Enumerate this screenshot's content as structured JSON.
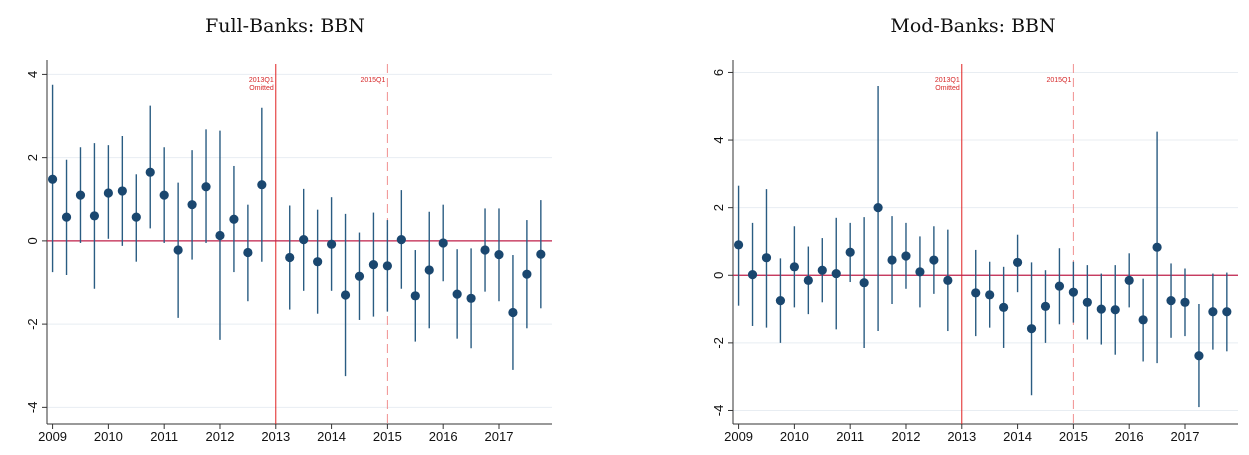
{
  "colors": {
    "marker": "#1a476f",
    "ci": "#2a5c82",
    "zero_line": "#c0204a",
    "ref_line": "#e02020",
    "dash_line": "#f09090",
    "grid": "#e8edf2",
    "annotation": "#d62728"
  },
  "chart_data": [
    {
      "type": "scatter",
      "title": "Full-Banks: BBN",
      "xlabel": "",
      "ylabel": "",
      "xlim": [
        2008.9,
        2017.95
      ],
      "ylim": [
        -4.4,
        4.25
      ],
      "x_ticks": [
        2009,
        2010,
        2011,
        2012,
        2013,
        2014,
        2015,
        2016,
        2017
      ],
      "x_tick_labels": [
        "2009",
        "2010",
        "2011",
        "2012",
        "2013",
        "2014",
        "2015",
        "2016",
        "2017"
      ],
      "y_ticks": [
        -4,
        -2,
        0,
        2,
        4
      ],
      "y_tick_labels": [
        "-4",
        "-2",
        "0",
        "2",
        "4"
      ],
      "grid": true,
      "zero_line": 0,
      "reference_lines": [
        {
          "x": 2013.0,
          "style": "solid",
          "label_lines": [
            "2013Q1",
            "Omitted"
          ]
        },
        {
          "x": 2015.0,
          "style": "dashed",
          "label_lines": [
            "2015Q1"
          ]
        }
      ],
      "points": [
        {
          "x": 2009.0,
          "y": 1.48,
          "lo": -0.75,
          "hi": 3.75
        },
        {
          "x": 2009.25,
          "y": 0.57,
          "lo": -0.82,
          "hi": 1.95
        },
        {
          "x": 2009.5,
          "y": 1.1,
          "lo": -0.05,
          "hi": 2.25
        },
        {
          "x": 2009.75,
          "y": 0.6,
          "lo": -1.15,
          "hi": 2.35
        },
        {
          "x": 2010.0,
          "y": 1.15,
          "lo": 0.05,
          "hi": 2.3
        },
        {
          "x": 2010.25,
          "y": 1.2,
          "lo": -0.12,
          "hi": 2.52
        },
        {
          "x": 2010.5,
          "y": 0.57,
          "lo": -0.5,
          "hi": 1.6
        },
        {
          "x": 2010.75,
          "y": 1.65,
          "lo": 0.3,
          "hi": 3.25
        },
        {
          "x": 2011.0,
          "y": 1.1,
          "lo": -0.05,
          "hi": 2.25
        },
        {
          "x": 2011.25,
          "y": -0.22,
          "lo": -1.85,
          "hi": 1.4
        },
        {
          "x": 2011.5,
          "y": 0.87,
          "lo": -0.45,
          "hi": 2.18
        },
        {
          "x": 2011.75,
          "y": 1.3,
          "lo": -0.05,
          "hi": 2.68
        },
        {
          "x": 2012.0,
          "y": 0.13,
          "lo": -2.38,
          "hi": 2.65
        },
        {
          "x": 2012.25,
          "y": 0.52,
          "lo": -0.75,
          "hi": 1.8
        },
        {
          "x": 2012.5,
          "y": -0.28,
          "lo": -1.45,
          "hi": 0.87
        },
        {
          "x": 2012.75,
          "y": 1.35,
          "lo": -0.5,
          "hi": 3.2
        },
        {
          "x": 2013.25,
          "y": -0.4,
          "lo": -1.65,
          "hi": 0.85
        },
        {
          "x": 2013.5,
          "y": 0.03,
          "lo": -1.2,
          "hi": 1.25
        },
        {
          "x": 2013.75,
          "y": -0.5,
          "lo": -1.75,
          "hi": 0.75
        },
        {
          "x": 2014.0,
          "y": -0.08,
          "lo": -1.2,
          "hi": 1.05
        },
        {
          "x": 2014.25,
          "y": -1.3,
          "lo": -3.25,
          "hi": 0.65
        },
        {
          "x": 2014.5,
          "y": -0.85,
          "lo": -1.9,
          "hi": 0.2
        },
        {
          "x": 2014.75,
          "y": -0.57,
          "lo": -1.82,
          "hi": 0.68
        },
        {
          "x": 2015.0,
          "y": -0.6,
          "lo": -1.7,
          "hi": 0.5
        },
        {
          "x": 2015.25,
          "y": 0.03,
          "lo": -1.15,
          "hi": 1.22
        },
        {
          "x": 2015.5,
          "y": -1.32,
          "lo": -2.42,
          "hi": -0.22
        },
        {
          "x": 2015.75,
          "y": -0.7,
          "lo": -2.1,
          "hi": 0.7
        },
        {
          "x": 2016.0,
          "y": -0.05,
          "lo": -0.97,
          "hi": 0.87
        },
        {
          "x": 2016.25,
          "y": -1.28,
          "lo": -2.35,
          "hi": -0.2
        },
        {
          "x": 2016.5,
          "y": -1.38,
          "lo": -2.58,
          "hi": -0.18
        },
        {
          "x": 2016.75,
          "y": -0.22,
          "lo": -1.22,
          "hi": 0.78
        },
        {
          "x": 2017.0,
          "y": -0.33,
          "lo": -1.45,
          "hi": 0.78
        },
        {
          "x": 2017.25,
          "y": -1.72,
          "lo": -3.1,
          "hi": -0.34
        },
        {
          "x": 2017.5,
          "y": -0.8,
          "lo": -2.1,
          "hi": 0.5
        },
        {
          "x": 2017.75,
          "y": -0.32,
          "lo": -1.62,
          "hi": 0.98
        }
      ]
    },
    {
      "type": "scatter",
      "title": "Mod-Banks: BBN",
      "xlabel": "",
      "ylabel": "",
      "xlim": [
        2008.9,
        2017.95
      ],
      "ylim": [
        -4.4,
        6.25
      ],
      "x_ticks": [
        2009,
        2010,
        2011,
        2012,
        2013,
        2014,
        2015,
        2016,
        2017
      ],
      "x_tick_labels": [
        "2009",
        "2010",
        "2011",
        "2012",
        "2013",
        "2014",
        "2015",
        "2016",
        "2017"
      ],
      "y_ticks": [
        -4,
        -2,
        0,
        2,
        4,
        6
      ],
      "y_tick_labels": [
        "-4",
        "-2",
        "0",
        "2",
        "4",
        "6"
      ],
      "grid": true,
      "zero_line": 0,
      "reference_lines": [
        {
          "x": 2013.0,
          "style": "solid",
          "label_lines": [
            "2013Q1",
            "Omitted"
          ]
        },
        {
          "x": 2015.0,
          "style": "dashed",
          "label_lines": [
            "2015Q1"
          ]
        }
      ],
      "points": [
        {
          "x": 2009.0,
          "y": 0.9,
          "lo": -0.9,
          "hi": 2.65
        },
        {
          "x": 2009.25,
          "y": 0.02,
          "lo": -1.5,
          "hi": 1.55
        },
        {
          "x": 2009.5,
          "y": 0.52,
          "lo": -1.55,
          "hi": 2.55
        },
        {
          "x": 2009.75,
          "y": -0.75,
          "lo": -2.0,
          "hi": 0.5
        },
        {
          "x": 2010.0,
          "y": 0.25,
          "lo": -0.95,
          "hi": 1.45
        },
        {
          "x": 2010.25,
          "y": -0.15,
          "lo": -1.15,
          "hi": 0.85
        },
        {
          "x": 2010.5,
          "y": 0.15,
          "lo": -0.8,
          "hi": 1.1
        },
        {
          "x": 2010.75,
          "y": 0.05,
          "lo": -1.6,
          "hi": 1.7
        },
        {
          "x": 2011.0,
          "y": 0.68,
          "lo": -0.2,
          "hi": 1.55
        },
        {
          "x": 2011.25,
          "y": -0.22,
          "lo": -2.15,
          "hi": 1.72
        },
        {
          "x": 2011.5,
          "y": 2.0,
          "lo": -1.65,
          "hi": 5.6
        },
        {
          "x": 2011.75,
          "y": 0.45,
          "lo": -0.85,
          "hi": 1.75
        },
        {
          "x": 2012.0,
          "y": 0.57,
          "lo": -0.4,
          "hi": 1.55
        },
        {
          "x": 2012.25,
          "y": 0.1,
          "lo": -0.95,
          "hi": 1.15
        },
        {
          "x": 2012.5,
          "y": 0.45,
          "lo": -0.55,
          "hi": 1.45
        },
        {
          "x": 2012.75,
          "y": -0.15,
          "lo": -1.65,
          "hi": 1.35
        },
        {
          "x": 2013.25,
          "y": -0.52,
          "lo": -1.8,
          "hi": 0.75
        },
        {
          "x": 2013.5,
          "y": -0.58,
          "lo": -1.55,
          "hi": 0.4
        },
        {
          "x": 2013.75,
          "y": -0.95,
          "lo": -2.15,
          "hi": 0.25
        },
        {
          "x": 2014.0,
          "y": 0.38,
          "lo": -0.5,
          "hi": 1.2
        },
        {
          "x": 2014.25,
          "y": -1.58,
          "lo": -3.55,
          "hi": 0.38
        },
        {
          "x": 2014.5,
          "y": -0.92,
          "lo": -2.0,
          "hi": 0.15
        },
        {
          "x": 2014.75,
          "y": -0.32,
          "lo": -1.45,
          "hi": 0.8
        },
        {
          "x": 2015.0,
          "y": -0.5,
          "lo": -1.4,
          "hi": 0.4
        },
        {
          "x": 2015.25,
          "y": -0.8,
          "lo": -1.9,
          "hi": 0.3
        },
        {
          "x": 2015.5,
          "y": -1.0,
          "lo": -2.05,
          "hi": 0.05
        },
        {
          "x": 2015.75,
          "y": -1.02,
          "lo": -2.35,
          "hi": 0.3
        },
        {
          "x": 2016.0,
          "y": -0.15,
          "lo": -0.95,
          "hi": 0.65
        },
        {
          "x": 2016.25,
          "y": -1.32,
          "lo": -2.55,
          "hi": -0.1
        },
        {
          "x": 2016.5,
          "y": 0.83,
          "lo": -2.6,
          "hi": 4.25
        },
        {
          "x": 2016.75,
          "y": -0.75,
          "lo": -1.85,
          "hi": 0.35
        },
        {
          "x": 2017.0,
          "y": -0.8,
          "lo": -1.8,
          "hi": 0.2
        },
        {
          "x": 2017.25,
          "y": -2.38,
          "lo": -3.9,
          "hi": -0.85
        },
        {
          "x": 2017.5,
          "y": -1.08,
          "lo": -2.2,
          "hi": 0.05
        },
        {
          "x": 2017.75,
          "y": -1.08,
          "lo": -2.25,
          "hi": 0.08
        }
      ]
    }
  ]
}
